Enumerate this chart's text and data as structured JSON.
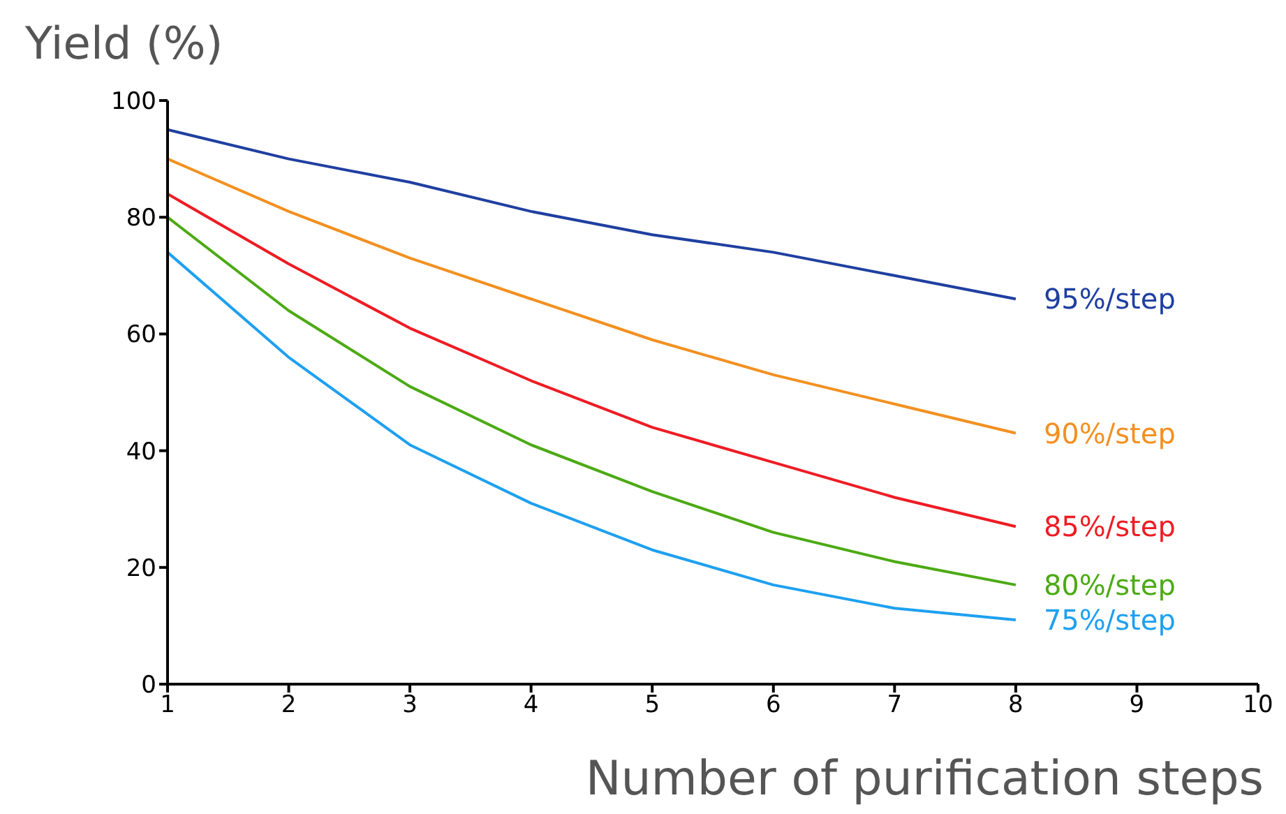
{
  "chart_data": {
    "type": "line",
    "xlabel": "Number of purification steps",
    "ylabel": "Yield (%)",
    "x": [
      1,
      2,
      3,
      4,
      5,
      6,
      7,
      8
    ],
    "series": [
      {
        "name": "95%/step",
        "color": "#1f3fa0",
        "values": [
          95,
          90,
          86,
          81,
          77,
          74,
          70,
          66
        ]
      },
      {
        "name": "90%/step",
        "color": "#f39020",
        "values": [
          90,
          81,
          73,
          66,
          59,
          53,
          48,
          43
        ]
      },
      {
        "name": "85%/step",
        "color": "#ee1c24",
        "values": [
          84,
          72,
          61,
          52,
          44,
          38,
          32,
          27
        ]
      },
      {
        "name": "80%/step",
        "color": "#4caa14",
        "values": [
          80,
          64,
          51,
          41,
          33,
          26,
          21,
          17
        ]
      },
      {
        "name": "75%/step",
        "color": "#1ea0f0",
        "values": [
          74,
          56,
          41,
          31,
          23,
          17,
          13,
          11
        ]
      }
    ],
    "xlim": [
      1,
      10
    ],
    "xticks": [
      1,
      2,
      3,
      4,
      5,
      6,
      7,
      8,
      9,
      10
    ],
    "ylim": [
      0,
      100
    ],
    "yticks": [
      0,
      20,
      40,
      60,
      80,
      100
    ],
    "grid": false,
    "legend": false,
    "marker": "none",
    "line_style": "solid"
  }
}
